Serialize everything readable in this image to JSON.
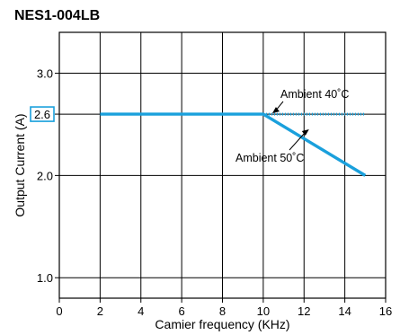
{
  "chart_data": {
    "type": "line",
    "title": "NES1-004LB",
    "xlabel": "Camier frequency (KHz)",
    "ylabel": "Output Current (A)",
    "xlim": [
      0,
      16
    ],
    "ylim": [
      0.8,
      3.4
    ],
    "xticks": [
      0,
      2,
      4,
      6,
      8,
      10,
      12,
      14,
      16
    ],
    "yticks": [
      1.0,
      2.0,
      3.0
    ],
    "yticklabels": [
      "1.0",
      "2.0",
      "3.0"
    ],
    "highlight_ytick": "2.6",
    "grid": true,
    "series": [
      {
        "name": "Ambient 40˚C",
        "style": "dotted",
        "color": "#1aa0dc",
        "x": [
          10,
          15
        ],
        "y": [
          2.6,
          2.6
        ]
      },
      {
        "name": "Ambient 50˚C",
        "style": "solid",
        "color": "#1aa0dc",
        "x": [
          2,
          10,
          15
        ],
        "y": [
          2.6,
          2.6,
          2.0
        ]
      }
    ],
    "annotations": [
      {
        "text": "Ambient 40˚C",
        "arrow_to": [
          10.4,
          2.6
        ]
      },
      {
        "text": "Ambient 50˚C",
        "arrow_to": [
          12.2,
          2.46
        ]
      }
    ]
  }
}
